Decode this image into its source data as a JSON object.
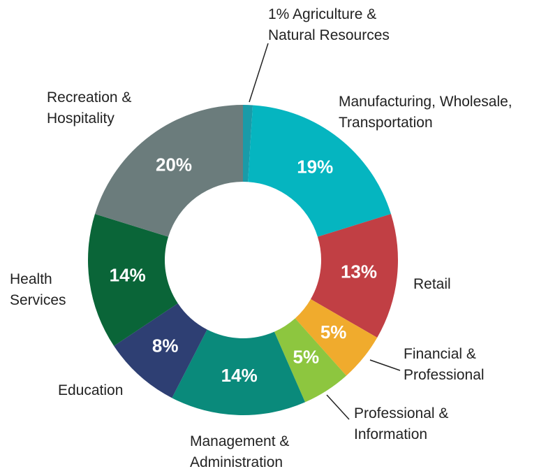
{
  "chart_data": {
    "type": "donut",
    "categories": [
      "Agriculture & Natural Resources",
      "Manufacturing, Wholesale, Transportation",
      "Retail",
      "Financial & Professional",
      "Professional & Information",
      "Management & Administration",
      "Education",
      "Health Services",
      "Recreation & Hospitality"
    ],
    "values": [
      1,
      19,
      13,
      5,
      5,
      14,
      8,
      14,
      20
    ],
    "value_labels": [
      "1%",
      "19%",
      "13%",
      "5%",
      "5%",
      "14%",
      "8%",
      "14%",
      "20%"
    ],
    "colors": [
      "#1a9ba8",
      "#05b5c0",
      "#c13f44",
      "#f0ab2d",
      "#8dc63f",
      "#0a8a7b",
      "#2e3f73",
      "#0a6538",
      "#6b7c7c"
    ]
  }
}
